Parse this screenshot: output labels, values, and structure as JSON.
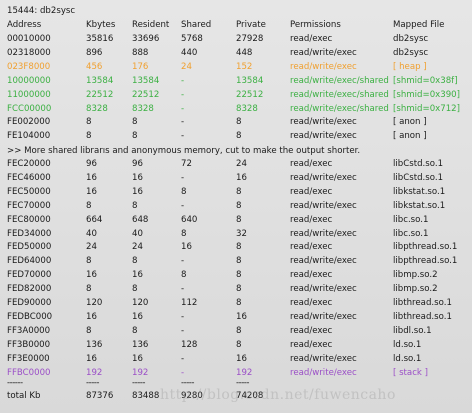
{
  "header": {
    "pid_line": "15444:   db2sysc"
  },
  "columns": [
    "Address",
    "Kbytes",
    "Resident",
    "Shared",
    "Private",
    "Permissions",
    "Mapped File"
  ],
  "rows_top": [
    {
      "addr": "00010000",
      "kb": "35816",
      "res": "33696",
      "shared": "5768",
      "priv": "27928",
      "perm": "read/exec",
      "map": "db2sysc",
      "color": "#1a1a1a"
    },
    {
      "addr": "02318000",
      "kb": "896",
      "res": "888",
      "shared": "440",
      "priv": "448",
      "perm": "read/write/exec",
      "map": "db2sysc",
      "color": "#1a1a1a"
    },
    {
      "addr": "023F8000",
      "kb": "456",
      "res": "176",
      "shared": "24",
      "priv": "152",
      "perm": "read/write/exec",
      "map": "[ heap ]",
      "color": "#f0a030"
    },
    {
      "addr": "10000000",
      "kb": "13584",
      "res": "13584",
      "shared": "-",
      "priv": "13584",
      "perm": "read/write/exec/shared",
      "map": "[shmid=0x38f]",
      "color": "#3cb043"
    },
    {
      "addr": "11000000",
      "kb": "22512",
      "res": "22512",
      "shared": "-",
      "priv": "22512",
      "perm": "read/write/exec/shared",
      "map": "[shmid=0x390]",
      "color": "#3cb043"
    },
    {
      "addr": "FCC00000",
      "kb": "8328",
      "res": "8328",
      "shared": "-",
      "priv": "8328",
      "perm": "read/write/exec/shared",
      "map": "[shmid=0x712]",
      "color": "#3cb043"
    },
    {
      "addr": "FE002000",
      "kb": "8",
      "res": "8",
      "shared": "-",
      "priv": "8",
      "perm": "read/write/exec",
      "map": "[ anon ]",
      "color": "#1a1a1a"
    },
    {
      "addr": "FE104000",
      "kb": "8",
      "res": "8",
      "shared": "-",
      "priv": "8",
      "perm": "read/write/exec",
      "map": "[ anon ]",
      "color": "#1a1a1a"
    }
  ],
  "note": ">> More shared librarıs and anonymous memory, cut to make the output shorter.",
  "rows_bottom": [
    {
      "addr": "FEC20000",
      "kb": "96",
      "res": "96",
      "shared": "72",
      "priv": "24",
      "perm": "read/exec",
      "map": "libCstd.so.1",
      "color": "#1a1a1a"
    },
    {
      "addr": "FEC46000",
      "kb": "16",
      "res": "16",
      "shared": "-",
      "priv": "16",
      "perm": "read/write/exec",
      "map": "libCstd.so.1",
      "color": "#1a1a1a"
    },
    {
      "addr": "FEC50000",
      "kb": "16",
      "res": "16",
      "shared": "8",
      "priv": "8",
      "perm": "read/exec",
      "map": "libkstat.so.1",
      "color": "#1a1a1a"
    },
    {
      "addr": "FEC70000",
      "kb": "8",
      "res": "8",
      "shared": "-",
      "priv": "8",
      "perm": "read/write/exec",
      "map": "libkstat.so.1",
      "color": "#1a1a1a"
    },
    {
      "addr": "FEC80000",
      "kb": "664",
      "res": "648",
      "shared": "640",
      "priv": "8",
      "perm": "read/exec",
      "map": "libc.so.1",
      "color": "#1a1a1a"
    },
    {
      "addr": "FED34000",
      "kb": "40",
      "res": "40",
      "shared": "8",
      "priv": "32",
      "perm": "read/write/exec",
      "map": "libc.so.1",
      "color": "#1a1a1a"
    },
    {
      "addr": "FED50000",
      "kb": "24",
      "res": "24",
      "shared": "16",
      "priv": "8",
      "perm": "read/exec",
      "map": "libpthread.so.1",
      "color": "#1a1a1a"
    },
    {
      "addr": "FED64000",
      "kb": "8",
      "res": "8",
      "shared": "-",
      "priv": "8",
      "perm": "read/write/exec",
      "map": "libpthread.so.1",
      "color": "#1a1a1a"
    },
    {
      "addr": "FED70000",
      "kb": "16",
      "res": "16",
      "shared": "8",
      "priv": "8",
      "perm": "read/exec",
      "map": "libmp.so.2",
      "color": "#1a1a1a"
    },
    {
      "addr": "FED82000",
      "kb": "8",
      "res": "8",
      "shared": "-",
      "priv": "8",
      "perm": "read/write/exec",
      "map": "libmp.so.2",
      "color": "#1a1a1a"
    },
    {
      "addr": "FED90000",
      "kb": "120",
      "res": "120",
      "shared": "112",
      "priv": "8",
      "perm": "read/exec",
      "map": "libthread.so.1",
      "color": "#1a1a1a"
    },
    {
      "addr": "FEDBC000",
      "kb": "16",
      "res": "16",
      "shared": "-",
      "priv": "16",
      "perm": "read/write/exec",
      "map": "libthread.so.1",
      "color": "#1a1a1a"
    },
    {
      "addr": "FF3A0000",
      "kb": "8",
      "res": "8",
      "shared": "-",
      "priv": "8",
      "perm": "read/exec",
      "map": "libdl.so.1",
      "color": "#1a1a1a"
    },
    {
      "addr": "FF3B0000",
      "kb": "136",
      "res": "136",
      "shared": "128",
      "priv": "8",
      "perm": "read/exec",
      "map": "ld.so.1",
      "color": "#1a1a1a"
    },
    {
      "addr": "FF3E0000",
      "kb": "16",
      "res": "16",
      "shared": "-",
      "priv": "16",
      "perm": "read/write/exec",
      "map": "ld.so.1",
      "color": "#1a1a1a"
    },
    {
      "addr": "FFBC0000",
      "kb": "192",
      "res": "192",
      "shared": "-",
      "priv": "192",
      "perm": "read/write/exec",
      "map": "[ stack ]",
      "color": "#9b4fc7"
    }
  ],
  "separator": [
    "------",
    "-----",
    "-----",
    "-----",
    "-----"
  ],
  "total": {
    "label": "total Kb",
    "kb": "87376",
    "res": "83488",
    "shared": "9280",
    "priv": "74208"
  },
  "watermark": "http://blog.csdn.net/fuwencaho"
}
